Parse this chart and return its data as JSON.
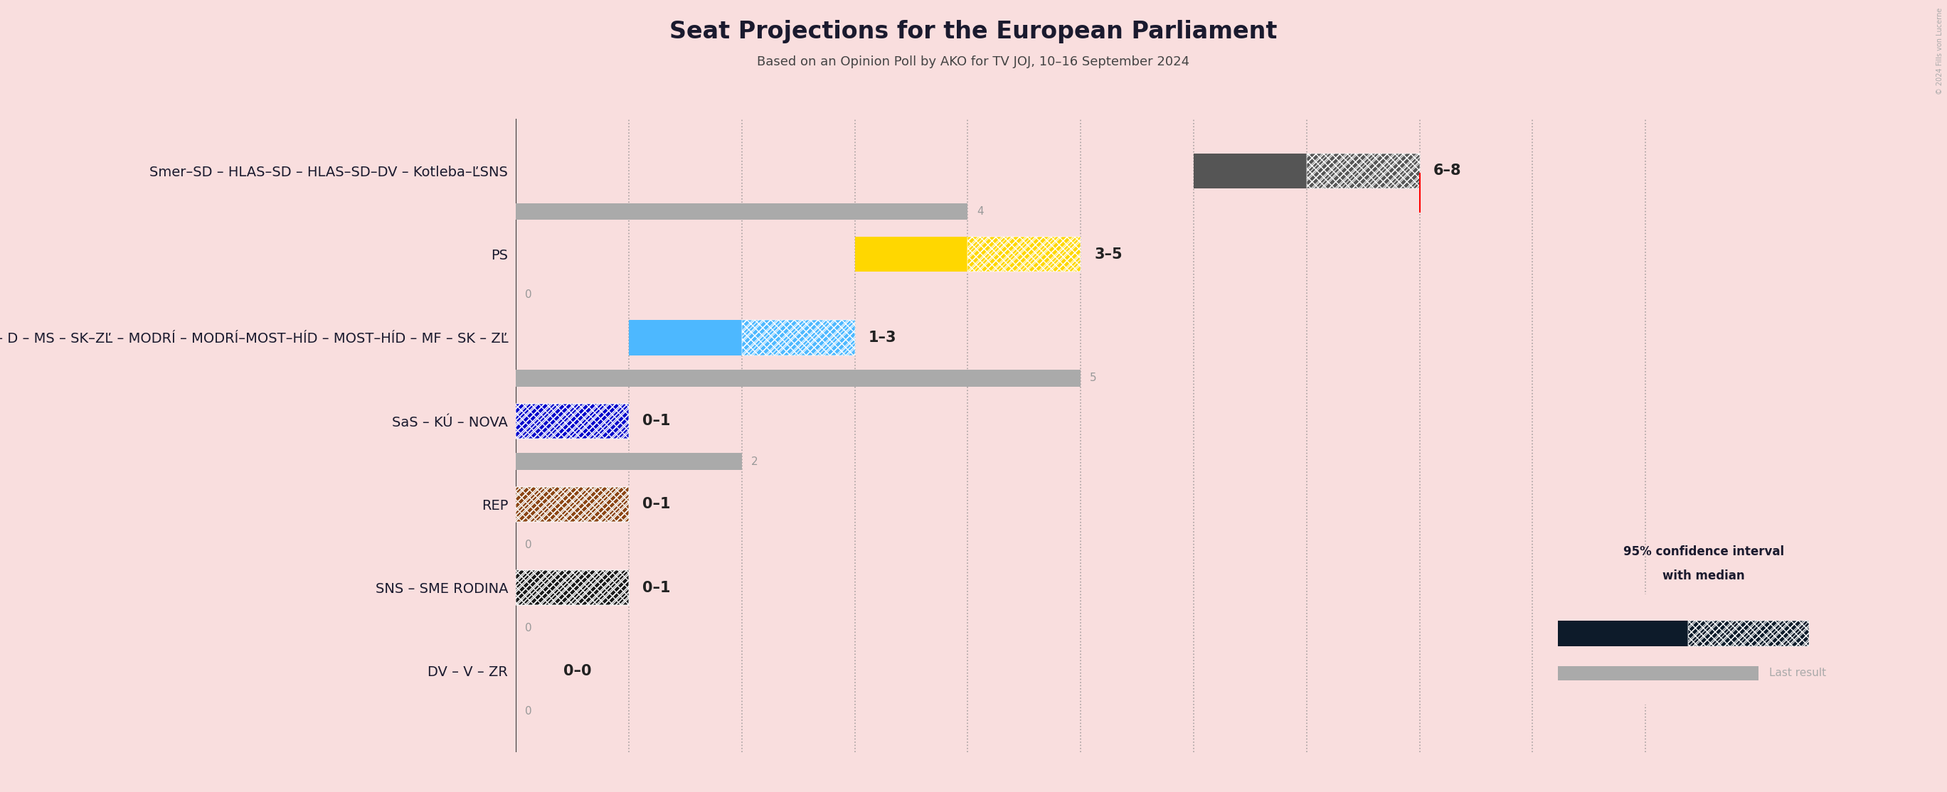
{
  "title": "Seat Projections for the European Parliament",
  "subtitle": "Based on an Opinion Poll by AKO for TV JOJ, 10–16 September 2024",
  "background_color": "#f9dede",
  "coalitions": [
    {
      "name": "Smer–SD – HLAS–SD – HLAS–SD–DV – Kotleba–ĽSNS",
      "bar_color": "#555555",
      "ci_min": 6,
      "ci_max": 8,
      "median": 7,
      "last_result": 4,
      "label": "6–8",
      "last_label": "4",
      "threshold": 8
    },
    {
      "name": "PS",
      "bar_color": "#FFD700",
      "ci_min": 3,
      "ci_max": 5,
      "median": 4,
      "last_result": 0,
      "label": "3–5",
      "last_label": "0",
      "threshold": null
    },
    {
      "name": "KDH – D – MS – SK–ZĽ – MODRÍ – MODRÍ–MOST–HÍD – MOST–HÍD – MF – SK – ZĽ",
      "bar_color": "#4db8ff",
      "ci_min": 1,
      "ci_max": 3,
      "median": 2,
      "last_result": 5,
      "label": "1–3",
      "last_label": "5",
      "threshold": null
    },
    {
      "name": "SaS – KÚ – NOVA",
      "bar_color": "#0000CC",
      "ci_min": 0,
      "ci_max": 1,
      "median": 0,
      "last_result": 2,
      "label": "0–1",
      "last_label": "2",
      "threshold": null
    },
    {
      "name": "REP",
      "bar_color": "#8B4513",
      "ci_min": 0,
      "ci_max": 1,
      "median": 0,
      "last_result": 0,
      "label": "0–1",
      "last_label": "0",
      "threshold": null
    },
    {
      "name": "SNS – SME RODINA",
      "bar_color": "#1a1a1a",
      "ci_min": 0,
      "ci_max": 1,
      "median": 0,
      "last_result": 0,
      "label": "0–1",
      "last_label": "0",
      "threshold": null
    },
    {
      "name": "DV – V – ZR",
      "bar_color": "#0d1b2a",
      "ci_min": 0,
      "ci_max": 0,
      "median": 0,
      "last_result": 0,
      "label": "0–0",
      "last_label": "0",
      "threshold": null
    }
  ],
  "x_max": 10,
  "title_fontsize": 24,
  "subtitle_fontsize": 13,
  "label_fontsize": 15,
  "name_fontsize": 14,
  "copyright": "© 2024 Fills von Lucerne"
}
